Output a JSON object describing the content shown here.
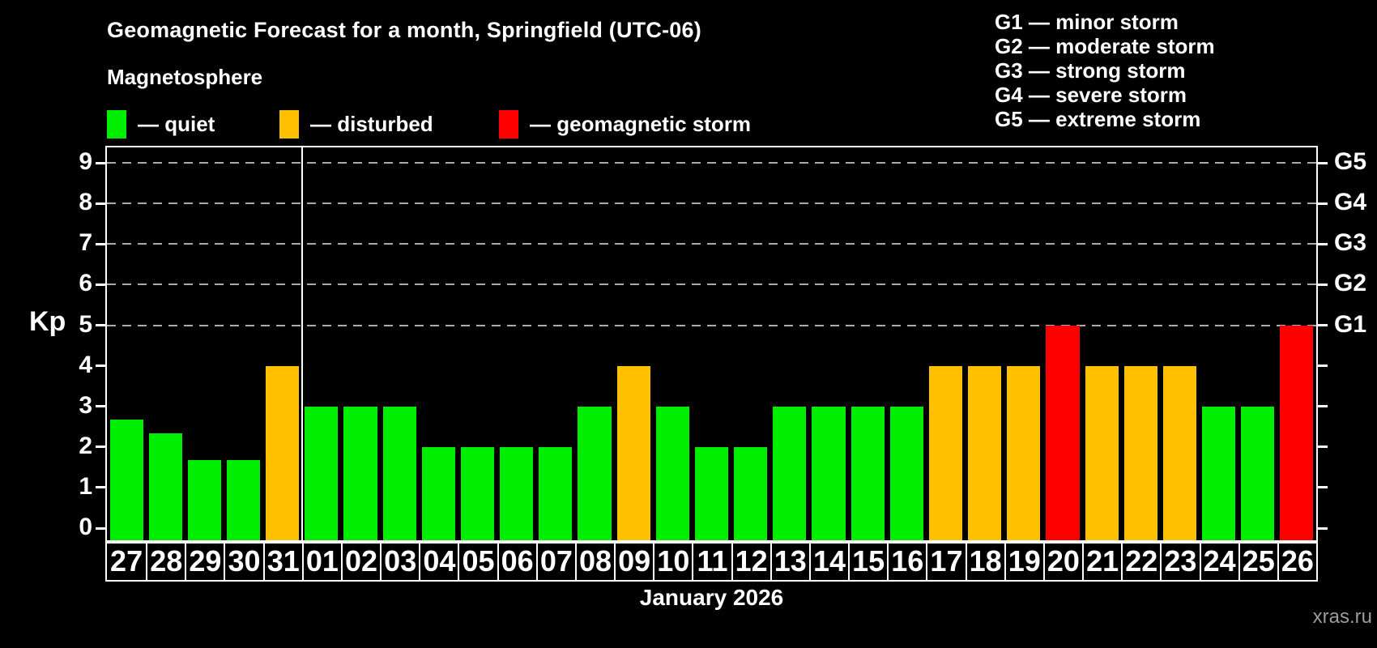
{
  "header": {
    "title": "Geomagnetic Forecast for a month, Springfield (UTC-06)",
    "subtitle": "Magnetosphere"
  },
  "legend": {
    "items": [
      {
        "label": "— quiet",
        "level": "quiet",
        "color": "#00ef00"
      },
      {
        "label": "— disturbed",
        "level": "disturbed",
        "color": "#ffc000"
      },
      {
        "label": "— geomagnetic storm",
        "level": "storm",
        "color": "#ff0000"
      }
    ]
  },
  "g_legend": {
    "items": [
      "G1 — minor storm",
      "G2 — moderate storm",
      "G3 — strong storm",
      "G4 — severe storm",
      "G5 — extreme storm"
    ]
  },
  "chart_data": {
    "type": "bar",
    "title": "Geomagnetic Forecast for a month, Springfield (UTC-06)",
    "ylabel": "Kp",
    "xlabel": "January 2026",
    "yticks": [
      0,
      1,
      2,
      3,
      4,
      5,
      6,
      7,
      8,
      9
    ],
    "ylim": [
      0,
      9
    ],
    "grid_levels": [
      5,
      6,
      7,
      8,
      9
    ],
    "g_labels": {
      "5": "G1",
      "6": "G2",
      "7": "G3",
      "8": "G4",
      "9": "G5"
    },
    "month_separator_after": "31",
    "days": [
      {
        "date": "27",
        "kp": 2.67,
        "level": "quiet"
      },
      {
        "date": "28",
        "kp": 2.33,
        "level": "quiet"
      },
      {
        "date": "29",
        "kp": 1.67,
        "level": "quiet"
      },
      {
        "date": "30",
        "kp": 1.67,
        "level": "quiet"
      },
      {
        "date": "31",
        "kp": 4,
        "level": "disturbed"
      },
      {
        "date": "01",
        "kp": 3,
        "level": "quiet"
      },
      {
        "date": "02",
        "kp": 3,
        "level": "quiet"
      },
      {
        "date": "03",
        "kp": 3,
        "level": "quiet"
      },
      {
        "date": "04",
        "kp": 2,
        "level": "quiet"
      },
      {
        "date": "05",
        "kp": 2,
        "level": "quiet"
      },
      {
        "date": "06",
        "kp": 2,
        "level": "quiet"
      },
      {
        "date": "07",
        "kp": 2,
        "level": "quiet"
      },
      {
        "date": "08",
        "kp": 3,
        "level": "quiet"
      },
      {
        "date": "09",
        "kp": 4,
        "level": "disturbed"
      },
      {
        "date": "10",
        "kp": 3,
        "level": "quiet"
      },
      {
        "date": "11",
        "kp": 2,
        "level": "quiet"
      },
      {
        "date": "12",
        "kp": 2,
        "level": "quiet"
      },
      {
        "date": "13",
        "kp": 3,
        "level": "quiet"
      },
      {
        "date": "14",
        "kp": 3,
        "level": "quiet"
      },
      {
        "date": "15",
        "kp": 3,
        "level": "quiet"
      },
      {
        "date": "16",
        "kp": 3,
        "level": "quiet"
      },
      {
        "date": "17",
        "kp": 4,
        "level": "disturbed"
      },
      {
        "date": "18",
        "kp": 4,
        "level": "disturbed"
      },
      {
        "date": "19",
        "kp": 4,
        "level": "disturbed"
      },
      {
        "date": "20",
        "kp": 5,
        "level": "storm"
      },
      {
        "date": "21",
        "kp": 4,
        "level": "disturbed"
      },
      {
        "date": "22",
        "kp": 4,
        "level": "disturbed"
      },
      {
        "date": "23",
        "kp": 4,
        "level": "disturbed"
      },
      {
        "date": "24",
        "kp": 3,
        "level": "quiet"
      },
      {
        "date": "25",
        "kp": 3,
        "level": "quiet"
      },
      {
        "date": "26",
        "kp": 5,
        "level": "storm"
      }
    ]
  },
  "watermark": "xras.ru"
}
